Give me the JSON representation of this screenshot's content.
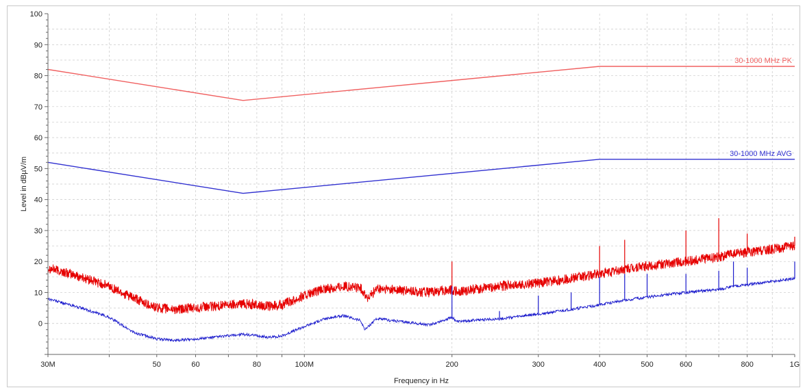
{
  "chart_data": {
    "type": "line",
    "xlabel": "Frequency in Hz",
    "ylabel": "Level in dBµV/m",
    "x_scale": "log",
    "xlim": [
      30000000,
      1000000000
    ],
    "ylim": [
      -10,
      100
    ],
    "grid": true,
    "y_ticks": [
      0,
      10,
      20,
      30,
      40,
      50,
      60,
      70,
      80,
      90,
      100
    ],
    "x_ticks": [
      {
        "value": 30000000,
        "label": "30M"
      },
      {
        "value": 50000000,
        "label": "50"
      },
      {
        "value": 60000000,
        "label": "60"
      },
      {
        "value": 80000000,
        "label": "80"
      },
      {
        "value": 100000000,
        "label": "100M"
      },
      {
        "value": 200000000,
        "label": "200"
      },
      {
        "value": 300000000,
        "label": "300"
      },
      {
        "value": 400000000,
        "label": "400"
      },
      {
        "value": 500000000,
        "label": "500"
      },
      {
        "value": 600000000,
        "label": "600"
      },
      {
        "value": 800000000,
        "label": "800"
      },
      {
        "value": 1000000000,
        "label": "1G"
      }
    ],
    "colors": {
      "peak": "#e60000",
      "average": "#1a1acc",
      "peak_limit": "#f06060",
      "avg_limit": "#3030d0",
      "grid": "#c8c8c8"
    },
    "limits": [
      {
        "name": "30-1000 MHz PK",
        "color": "#f06060",
        "x": [
          30000000,
          75000000,
          400000000,
          1000000000
        ],
        "y": [
          82,
          72,
          83,
          83
        ]
      },
      {
        "name": "30-1000 MHz AVG",
        "color": "#3030d0",
        "x": [
          30000000,
          75000000,
          400000000,
          1000000000
        ],
        "y": [
          52,
          42,
          53,
          53
        ]
      }
    ],
    "series": [
      {
        "color": "#e60000",
        "x": [
          30000000,
          35000000,
          40000000,
          45000000,
          50000000,
          55000000,
          60000000,
          65000000,
          70000000,
          75000000,
          80000000,
          85000000,
          90000000,
          100000000,
          110000000,
          120000000,
          130000000,
          135000000,
          140000000,
          150000000,
          160000000,
          180000000,
          200000000,
          205000000,
          220000000,
          250000000,
          300000000,
          350000000,
          400000000,
          450000000,
          500000000,
          600000000,
          700000000,
          750000000,
          800000000,
          900000000,
          1000000000
        ],
        "y": [
          18,
          15,
          12,
          8,
          5,
          4.5,
          5,
          5.5,
          6,
          6.5,
          6,
          5.5,
          6,
          9,
          11,
          12,
          11.5,
          8,
          11,
          11,
          10.5,
          10,
          11,
          10,
          11,
          12,
          13,
          14.5,
          16,
          17.5,
          18.5,
          20,
          21.5,
          22.5,
          23,
          24,
          25
        ],
        "spikes": [
          {
            "x": 200000000,
            "y": 20
          },
          {
            "x": 400000000,
            "y": 25
          },
          {
            "x": 450000000,
            "y": 27
          },
          {
            "x": 600000000,
            "y": 30
          },
          {
            "x": 700000000,
            "y": 34
          },
          {
            "x": 800000000,
            "y": 29
          },
          {
            "x": 1000000000,
            "y": 28
          }
        ]
      },
      {
        "color": "#1a1acc",
        "x": [
          30000000,
          35000000,
          40000000,
          45000000,
          50000000,
          55000000,
          60000000,
          65000000,
          70000000,
          75000000,
          80000000,
          85000000,
          90000000,
          100000000,
          110000000,
          120000000,
          130000000,
          133000000,
          140000000,
          150000000,
          160000000,
          180000000,
          200000000,
          205000000,
          220000000,
          250000000,
          300000000,
          350000000,
          400000000,
          450000000,
          500000000,
          600000000,
          700000000,
          750000000,
          800000000,
          900000000,
          1000000000
        ],
        "y": [
          8,
          5,
          2,
          -3,
          -5,
          -5.5,
          -5,
          -4.5,
          -4,
          -3.5,
          -4,
          -4.5,
          -4,
          -1,
          1.5,
          2.5,
          1,
          -2,
          1.5,
          1,
          0.5,
          -0.5,
          2,
          0.5,
          1,
          1.5,
          3,
          4.5,
          6,
          7.5,
          8.5,
          10,
          11,
          12,
          12.5,
          13.5,
          14.5
        ],
        "spikes": [
          {
            "x": 200000000,
            "y": 12
          },
          {
            "x": 250000000,
            "y": 4
          },
          {
            "x": 300000000,
            "y": 9
          },
          {
            "x": 350000000,
            "y": 10
          },
          {
            "x": 400000000,
            "y": 15
          },
          {
            "x": 450000000,
            "y": 16
          },
          {
            "x": 500000000,
            "y": 16
          },
          {
            "x": 600000000,
            "y": 16
          },
          {
            "x": 700000000,
            "y": 17
          },
          {
            "x": 750000000,
            "y": 20
          },
          {
            "x": 800000000,
            "y": 18
          },
          {
            "x": 1000000000,
            "y": 20
          }
        ]
      }
    ]
  }
}
